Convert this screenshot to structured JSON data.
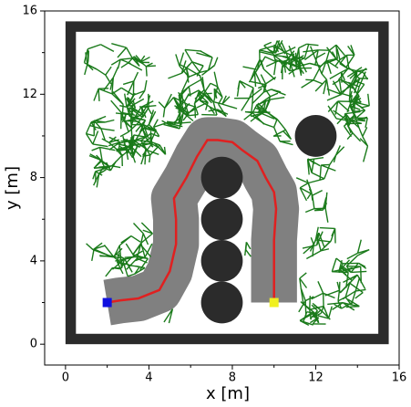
{
  "chart_data": {
    "type": "path_plan",
    "xlabel": "x [m]",
    "ylabel": "y [m]",
    "xlim": [
      -1,
      16
    ],
    "ylim": [
      -1,
      16
    ],
    "xticks": [
      0,
      4,
      8,
      12,
      16
    ],
    "yticks": [
      0,
      4,
      8,
      12,
      16
    ],
    "xminor": [
      2,
      6,
      10,
      14
    ],
    "yminor": [
      2,
      6,
      10,
      14
    ],
    "walls": {
      "x0": 0,
      "y0": 0,
      "x1": 15.5,
      "y1": 15.5,
      "thickness": 0.5,
      "color": "#2b2b2b"
    },
    "obstacles": {
      "color": "#2b2b2b",
      "x": [
        7.5,
        7.5,
        7.5,
        7.5,
        12
      ],
      "y": [
        2,
        4,
        6,
        8,
        10
      ],
      "r": [
        1,
        1,
        1,
        1,
        1
      ]
    },
    "corridor": {
      "color": "#808080",
      "width": 2.2
    },
    "tree_color": "#1a7a1a",
    "path": {
      "color": "#e02020",
      "x": [
        2,
        2.6,
        3.5,
        4.5,
        5,
        5.3,
        5.3,
        5.2,
        5.8,
        6.3,
        6.8,
        7.3,
        8,
        8.5,
        9.2,
        9.6,
        10,
        10.1,
        10,
        10,
        10,
        10
      ],
      "y": [
        2,
        2.1,
        2.2,
        2.6,
        3.5,
        4.8,
        6,
        7,
        8,
        9,
        9.8,
        9.8,
        9.7,
        9.3,
        8.8,
        8,
        7.3,
        6.5,
        5,
        4,
        3,
        2
      ]
    },
    "start": {
      "x": 2,
      "y": 2,
      "color": "#1010e0"
    },
    "goal": {
      "x": 10,
      "y": 2,
      "color": "#f0f020"
    }
  }
}
